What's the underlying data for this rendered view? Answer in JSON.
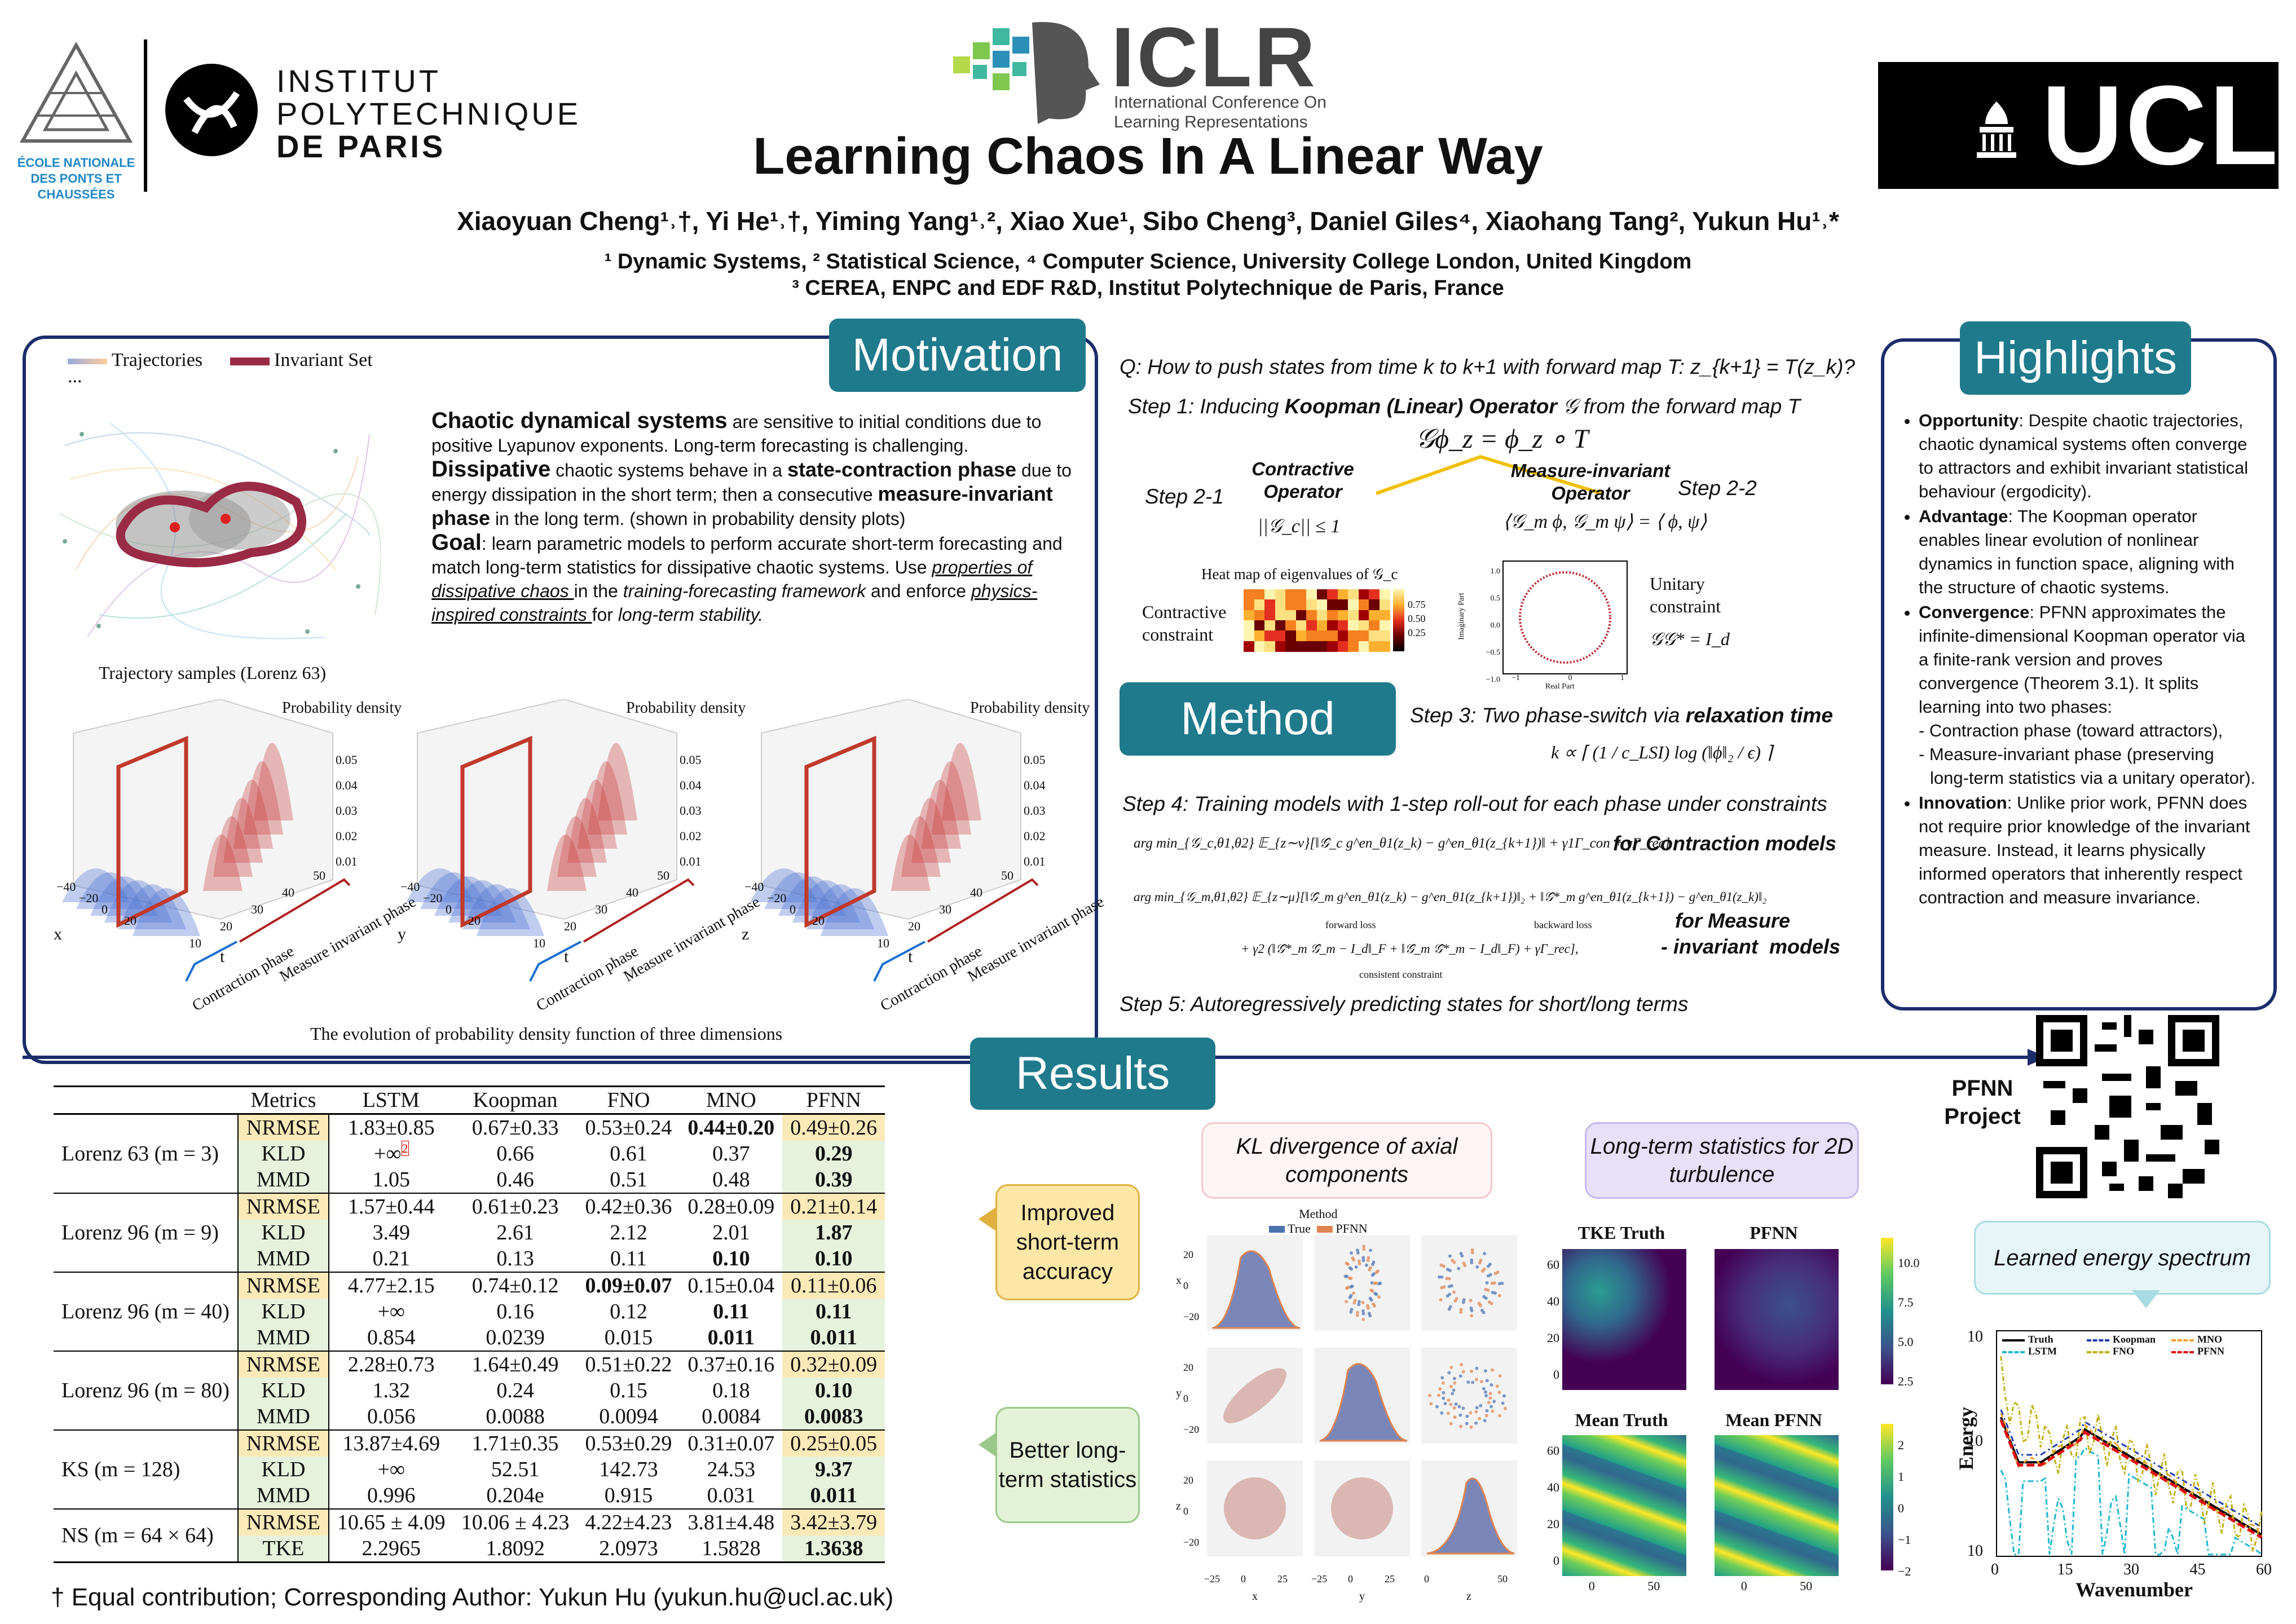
{
  "header": {
    "enpc_logo": "ÉCOLE NATIONALE DES PONTS ET CHAUSSÉES",
    "ipp_line1": "INSTITUT",
    "ipp_line2": "POLYTECHNIQUE",
    "ipp_line3": "DE PARIS",
    "ipp_seal_text": "INSTITUT POLYTECHNIQUE DE PARIS",
    "iclr_title": "ICLR",
    "iclr_sub1": "International Conference On",
    "iclr_sub2": "Learning Representations",
    "ucl_logo": "UCL",
    "title": "Learning Chaos In A Linear Way",
    "authors": "Xiaoyuan Cheng¹˒†, Yi He¹˒†, Yiming Yang¹˒², Xiao Xue¹, Sibo Cheng³, Daniel Giles⁴, Xiaohang Tang², Yukun Hu¹˒*",
    "affil1": "¹ Dynamic Systems, ² Statistical Science, ⁴ Computer Science, University College London, United Kingdom",
    "affil2": "³ CEREA, ENPC and EDF R&D, Institut Polytechnique de Paris, France"
  },
  "motivation": {
    "title": "Motivation",
    "legend_traj": "Trajectories",
    "legend_inv": "Invariant Set",
    "legend_dots": "...",
    "traj_caption": "Trajectory samples (Lorenz 63)",
    "p1_bold": "Chaotic dynamical systems",
    "p1_rest": " are sensitive to initial conditions due to positive Lyapunov exponents. Long-term forecasting is challenging.",
    "p2_bold": "Dissipative",
    "p2_a": " chaotic systems behave in a ",
    "p2_bold2": "state-contraction phase",
    "p2_b": " due to energy dissipation in the short term; then a consecutive ",
    "p2_bold3": "measure-invariant phase",
    "p2_c": " in the long term. (shown in probability density plots)",
    "p3_bold": "Goal",
    "p3_a": ": learn parametric models to perform accurate short-term forecasting and match long-term statistics for dissipative chaotic systems. Use ",
    "p3_u1": "properties of dissipative chaos ",
    "p3_b": "in the ",
    "p3_i1": "training-forecasting framework",
    "p3_c": " and enforce ",
    "p3_u2": "physics-inspired constraints ",
    "p3_d": "for ",
    "p3_i2": "long-term stability.",
    "density_label": "Probability density",
    "density_ticks": [
      "0.05",
      "0.04",
      "0.03",
      "0.02",
      "0.01"
    ],
    "axis_x_ticks": [
      "−40",
      "−20",
      "0",
      "20"
    ],
    "axes": [
      "x",
      "y",
      "z"
    ],
    "t_label": "t",
    "t_ticks": [
      "10",
      "20",
      "30",
      "40",
      "50"
    ],
    "phase_contract": "Contraction phase",
    "phase_measure": "Measure invariant phase",
    "density_caption": "The evolution of probability density function of three dimensions"
  },
  "method": {
    "title": "Method",
    "question": "Q: How to push states from time k to k+1 with forward map T: z_{k+1} = T(z_k)?",
    "step1_a": "Step 1: Inducing ",
    "step1_b": "Koopman (Linear) Operator",
    "step1_c": " 𝒢 from the forward map T",
    "central_eq": "𝒢ϕ_z = ϕ_z ∘ T",
    "contractive_op": "Contractive Operator",
    "measure_op": "Measure-invariant Operator",
    "step21": "Step 2-1",
    "step22": "Step 2-2",
    "contract_eq": "||𝒢_c|| ≤ 1",
    "measure_eq": "⟨𝒢_m ϕ, 𝒢_m ψ⟩ = ⟨ ϕ, ψ⟩",
    "heatmap_title": "Heat map of eigenvalues of 𝒢_c",
    "heatmap_ticks": [
      "0.75",
      "0.50",
      "0.25"
    ],
    "contract_constraint": "Contractive constraint",
    "unitary_constraint": "Unitary constraint",
    "unitary_eq": "𝒢𝒢* = I_d",
    "circle_ylabel": "Imaginary Part",
    "circle_xlabel": "Real Part",
    "circle_ticks": [
      "1.0",
      "0.5",
      "0.0",
      "−0.5",
      "−1.0"
    ],
    "circle_xticks": [
      "−1",
      "0",
      "1"
    ],
    "step3_a": "Step 3: Two phase-switch via ",
    "step3_b": "relaxation time",
    "step3_eq": "k ∝ ⌈ (1 / c_LSI) log (‖ϕ‖₂ / ϵ) ⌉",
    "step4": "Step 4: Training models with 1-step roll-out for each phase under constraints",
    "loss1": "arg min_{𝒢_c,θ1,θ2} 𝔼_{z∼ν}[‖𝒢̂_c g^en_θ1(z_k) − g^en_θ1(z_{k+1})‖ + γ1Γ_con + γΓ_rec]",
    "loss1_label": "for Contraction models",
    "loss2_line1": "arg min_{𝒢_m,θ1,θ2} 𝔼_{z∼μ}[‖𝒢̂_m g^en_θ1(z_k) − g^en_θ1(z_{k+1})‖₂ + ‖𝒢̂*_m g^en_θ1(z_{k+1}) − g^en_θ1(z_k)‖₂",
    "loss2_fwd": "forward loss",
    "loss2_bwd": "backward loss",
    "loss2_line2": "+ γ2 (‖𝒢̂*_m 𝒢̂_m − I_d‖_F + ‖𝒢̂_m 𝒢̂*_m − I_d‖_F) + γΓ_rec],",
    "loss2_consistent": "consistent constraint",
    "loss2_label1": "for Measure",
    "loss2_label2": "- invariant  models",
    "step5": "Step 5: Autoregressively predicting states for short/long terms"
  },
  "highlights": {
    "title": "Highlights",
    "items": [
      {
        "head": "Opportunity",
        "text": ": Despite chaotic trajectories, chaotic dynamical systems often converge to attractors and exhibit invariant statistical behaviour (ergodicity)."
      },
      {
        "head": "Advantage",
        "text": ": The Koopman operator enables linear evolution of nonlinear dynamics in function space, aligning with the structure of chaotic systems."
      },
      {
        "head": "Convergence",
        "text": ": PFNN approximates the infinite-dimensional Koopman operator via a finite-rank version and proves convergence (Theorem 3.1). It splits learning into two phases:"
      },
      {
        "head": "Innovation",
        "text": ": Unlike prior work, PFNN does not require prior knowledge of the invariant measure. Instead, it learns physically informed operators that inherently respect contraction and measure invariance."
      }
    ],
    "sub1": "- Contraction phase (toward attractors),",
    "sub2": "- Measure-invariant phase (preserving long-term statistics via a unitary operator)."
  },
  "results": {
    "title": "Results",
    "qr_label1": "PFNN",
    "qr_label2": "Project",
    "table_headers": [
      "",
      "Metrics",
      "LSTM",
      "Koopman",
      "FNO",
      "MNO",
      "PFNN"
    ],
    "groups": [
      {
        "name": "Lorenz 63 (m = 3)",
        "rows": [
          [
            "NRMSE",
            "1.83±0.85",
            "0.67±0.33",
            "0.53±0.24",
            "0.44±0.20",
            "0.49±0.26"
          ],
          [
            "KLD",
            "+∞",
            "0.66",
            "0.61",
            "0.37",
            "0.29"
          ],
          [
            "MMD",
            "1.05",
            "0.46",
            "0.51",
            "0.48",
            "0.39"
          ]
        ]
      },
      {
        "name": "Lorenz 96 (m = 9)",
        "rows": [
          [
            "NRMSE",
            "1.57±0.44",
            "0.61±0.23",
            "0.42±0.36",
            "0.28±0.09",
            "0.21±0.14"
          ],
          [
            "KLD",
            "3.49",
            "2.61",
            "2.12",
            "2.01",
            "1.87"
          ],
          [
            "MMD",
            "0.21",
            "0.13",
            "0.11",
            "0.10",
            "0.10"
          ]
        ]
      },
      {
        "name": "Lorenz 96 (m = 40)",
        "rows": [
          [
            "NRMSE",
            "4.77±2.15",
            "0.74±0.12",
            "0.09±0.07",
            "0.15±0.04",
            "0.11±0.06"
          ],
          [
            "KLD",
            "+∞",
            "0.16",
            "0.12",
            "0.11",
            "0.11"
          ],
          [
            "MMD",
            "0.854",
            "0.0239",
            "0.015",
            "0.011",
            "0.011"
          ]
        ]
      },
      {
        "name": "Lorenz 96 (m = 80)",
        "rows": [
          [
            "NRMSE",
            "2.28±0.73",
            "1.64±0.49",
            "0.51±0.22",
            "0.37±0.16",
            "0.32±0.09"
          ],
          [
            "KLD",
            "1.32",
            "0.24",
            "0.15",
            "0.18",
            "0.10"
          ],
          [
            "MMD",
            "0.056",
            "0.0088",
            "0.0094",
            "0.0084",
            "0.0083"
          ]
        ]
      },
      {
        "name": "KS (m = 128)",
        "rows": [
          [
            "NRMSE",
            "13.87±4.69",
            "1.71±0.35",
            "0.53±0.29",
            "0.31±0.07",
            "0.25±0.05"
          ],
          [
            "KLD",
            "+∞",
            "52.51",
            "142.73",
            "24.53",
            "9.37"
          ],
          [
            "MMD",
            "0.996",
            "0.204e",
            "0.915",
            "0.031",
            "0.011"
          ]
        ]
      },
      {
        "name": "NS (m = 64 × 64)",
        "rows": [
          [
            "NRMSE",
            "10.65 ± 4.09",
            "10.06 ± 4.23",
            "4.22±4.23",
            "3.81±4.48",
            "3.42±3.79"
          ],
          [
            "TKE",
            "2.2965",
            "1.8092",
            "2.0973",
            "1.5828",
            "1.3638"
          ]
        ]
      }
    ],
    "footnote_sup": "2",
    "callout_short": "Improved short-term accuracy",
    "callout_long": "Better long-term statistics",
    "kl_title": "KL divergence of axial components",
    "kl_legend_title": "Method",
    "kl_true": "True",
    "kl_pfnn": "PFNN",
    "kl_axis": [
      "x",
      "y",
      "z"
    ],
    "kl_yticks": [
      "20",
      "0",
      "−20"
    ],
    "kl_xticks": [
      "−25",
      "0",
      "25"
    ],
    "kl_zticks": [
      "0",
      "50"
    ],
    "lt_title": "Long-term statistics for 2D turbulence",
    "tke_truth": "TKE Truth",
    "tke_pfnn": "PFNN",
    "mean_truth": "Mean Truth",
    "mean_pfnn": "Mean PFNN",
    "field_ticks": [
      "60",
      "40",
      "20",
      "0"
    ],
    "field_xticks": [
      "0",
      "50"
    ],
    "cbar1": [
      "10.0",
      "7.5",
      "5.0",
      "2.5"
    ],
    "cbar2": [
      "2",
      "1",
      "0",
      "−1",
      "−2"
    ],
    "es_title": "Learned energy spectrum",
    "es_xlabel": "Wavenumber",
    "es_ylabel": "Energy",
    "es_xticks": [
      "0",
      "15",
      "30",
      "45",
      "60"
    ],
    "es_legend": [
      "Truth",
      "Koopman",
      "MNO",
      "LSTM",
      "FNO",
      "PFNN"
    ],
    "footnote": "† Equal contribution; Corresponding Author: Yukun Hu (yukun.hu@ucl.ac.uk)"
  },
  "colors": {
    "teal": "#1f7a8c",
    "navy": "#1c2d6b",
    "red": "#b23a3a",
    "callout_yellow": "#fce7a6",
    "callout_green": "#e3f2d6"
  }
}
